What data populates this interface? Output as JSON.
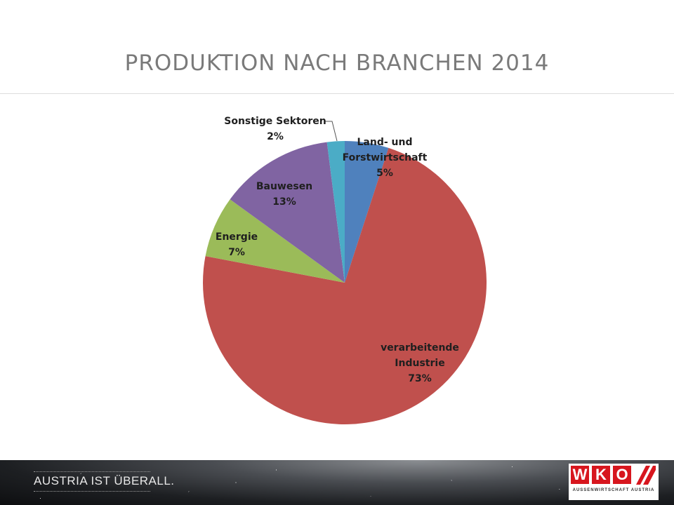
{
  "slide": {
    "title": "PRODUKTION NACH BRANCHEN 2014"
  },
  "chart_data": {
    "type": "pie",
    "categories": [
      "Land- und Forstwirtschaft",
      "verarbeitende Industrie",
      "Energie",
      "Bauwesen",
      "Sonstige Sektoren"
    ],
    "values": [
      5,
      73,
      7,
      13,
      2
    ],
    "unit": "%",
    "colors": [
      "#4f81bd",
      "#c0504d",
      "#9bbb59",
      "#8064a2",
      "#4bacc6"
    ],
    "start_angle_deg": 0,
    "direction": "clockwise",
    "labels": [
      {
        "lines": [
          "Land- und",
          "Forstwirtschaft"
        ],
        "value": "5%"
      },
      {
        "lines": [
          "verarbeitende",
          "Industrie"
        ],
        "value": "73%"
      },
      {
        "lines": [
          "Energie"
        ],
        "value": "7%"
      },
      {
        "lines": [
          "Bauwesen"
        ],
        "value": "13%"
      },
      {
        "lines": [
          "Sonstige Sektoren"
        ],
        "value": "2%"
      }
    ],
    "legend": "none"
  },
  "footer": {
    "tagline": "AUSTRIA IST ÜBERALL.",
    "logo_letters": [
      "W",
      "K",
      "O"
    ],
    "logo_subtext": "AUSSENWIRTSCHAFT AUSTRIA",
    "logo_color": "#d7161e"
  }
}
